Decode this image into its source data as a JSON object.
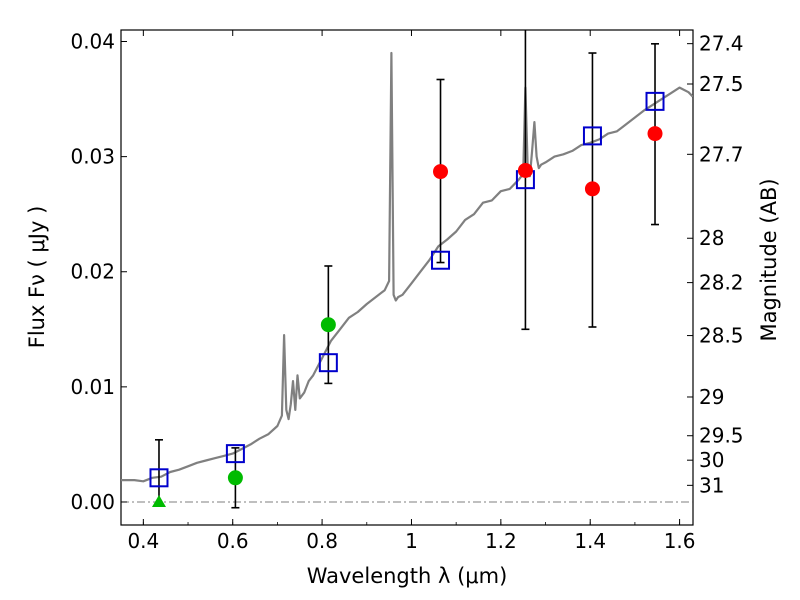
{
  "chart_data": {
    "type": "scatter",
    "xlabel": "Wavelength  λ (μm)",
    "ylabel": "Flux  Fν  ( μJy )",
    "y2label": "Magnitude (AB)",
    "xlim": [
      0.35,
      1.63
    ],
    "ylim": [
      -0.002,
      0.041
    ],
    "x_ticks": [
      0.4,
      0.6,
      0.8,
      1.0,
      1.2,
      1.4,
      1.6
    ],
    "x_tick_labels": [
      "0.4",
      "0.6",
      "0.8",
      "1",
      "1.2",
      "1.4",
      "1.6"
    ],
    "y_ticks": [
      0.0,
      0.01,
      0.02,
      0.03,
      0.04
    ],
    "y_tick_labels": [
      "0.00",
      "0.01",
      "0.02",
      "0.03",
      "0.04"
    ],
    "mag_ticks": [
      "27.4",
      "27.5",
      "27.7",
      "28",
      "28.2",
      "28.5",
      "29",
      "29.5",
      "30",
      "31"
    ],
    "grid": false,
    "series": [
      {
        "marker": "hollow-square",
        "color": "#0000cc",
        "x": [
          0.435,
          0.606,
          0.814,
          1.065,
          1.255,
          1.405,
          1.545
        ],
        "y": [
          0.0021,
          0.0042,
          0.0121,
          0.021,
          0.028,
          0.0318,
          0.0348
        ]
      },
      {
        "marker": "circle",
        "color": "#ff0000",
        "x": [
          1.065,
          1.255,
          1.405,
          1.545
        ],
        "y": [
          0.0287,
          0.0288,
          0.0272,
          0.032
        ],
        "yerr_low": [
          0.0079,
          0.0138,
          0.012,
          0.0079
        ],
        "yerr_high": [
          0.008,
          0.013,
          0.0118,
          0.0078
        ]
      },
      {
        "marker": "circle",
        "color": "#00bb00",
        "x": [
          0.606,
          0.814
        ],
        "y": [
          0.0021,
          0.0154
        ],
        "yerr_low": [
          0.0026,
          0.0051
        ],
        "yerr_high": [
          0.0026,
          0.0051
        ]
      },
      {
        "marker": "triangle",
        "color": "#00bb00",
        "x": [
          0.435
        ],
        "y": [
          0.0
        ],
        "yerr_low": [
          0.0
        ],
        "yerr_high": [
          0.0054
        ]
      }
    ],
    "spectrum": {
      "color": "#808080",
      "x": [
        0.35,
        0.38,
        0.4,
        0.42,
        0.44,
        0.46,
        0.48,
        0.5,
        0.52,
        0.54,
        0.56,
        0.58,
        0.6,
        0.62,
        0.64,
        0.66,
        0.68,
        0.7,
        0.71,
        0.715,
        0.72,
        0.725,
        0.73,
        0.735,
        0.74,
        0.745,
        0.75,
        0.76,
        0.77,
        0.78,
        0.8,
        0.82,
        0.84,
        0.86,
        0.88,
        0.9,
        0.92,
        0.94,
        0.95,
        0.955,
        0.96,
        0.965,
        0.97,
        0.98,
        1.0,
        1.02,
        1.04,
        1.06,
        1.08,
        1.1,
        1.12,
        1.14,
        1.16,
        1.18,
        1.2,
        1.22,
        1.24,
        1.25,
        1.255,
        1.26,
        1.265,
        1.27,
        1.275,
        1.28,
        1.285,
        1.29,
        1.3,
        1.32,
        1.34,
        1.36,
        1.38,
        1.4,
        1.42,
        1.44,
        1.46,
        1.48,
        1.5,
        1.52,
        1.54,
        1.56,
        1.58,
        1.6,
        1.62,
        1.63
      ],
      "y": [
        0.0019,
        0.0019,
        0.0018,
        0.0021,
        0.0022,
        0.0026,
        0.0028,
        0.0031,
        0.0034,
        0.0036,
        0.0038,
        0.004,
        0.0042,
        0.0046,
        0.005,
        0.0055,
        0.0059,
        0.0066,
        0.0075,
        0.0145,
        0.008,
        0.0072,
        0.0085,
        0.0105,
        0.008,
        0.011,
        0.009,
        0.0095,
        0.0105,
        0.011,
        0.0125,
        0.014,
        0.015,
        0.016,
        0.0165,
        0.0172,
        0.0178,
        0.0184,
        0.0192,
        0.039,
        0.018,
        0.0175,
        0.0178,
        0.018,
        0.019,
        0.02,
        0.021,
        0.0222,
        0.0228,
        0.0235,
        0.0245,
        0.025,
        0.026,
        0.0262,
        0.027,
        0.0272,
        0.028,
        0.0285,
        0.036,
        0.029,
        0.0283,
        0.0305,
        0.033,
        0.03,
        0.029,
        0.0293,
        0.0295,
        0.03,
        0.0302,
        0.0305,
        0.031,
        0.0312,
        0.0315,
        0.032,
        0.0322,
        0.0328,
        0.0334,
        0.034,
        0.0345,
        0.035,
        0.0355,
        0.036,
        0.0356,
        0.0352
      ]
    }
  }
}
